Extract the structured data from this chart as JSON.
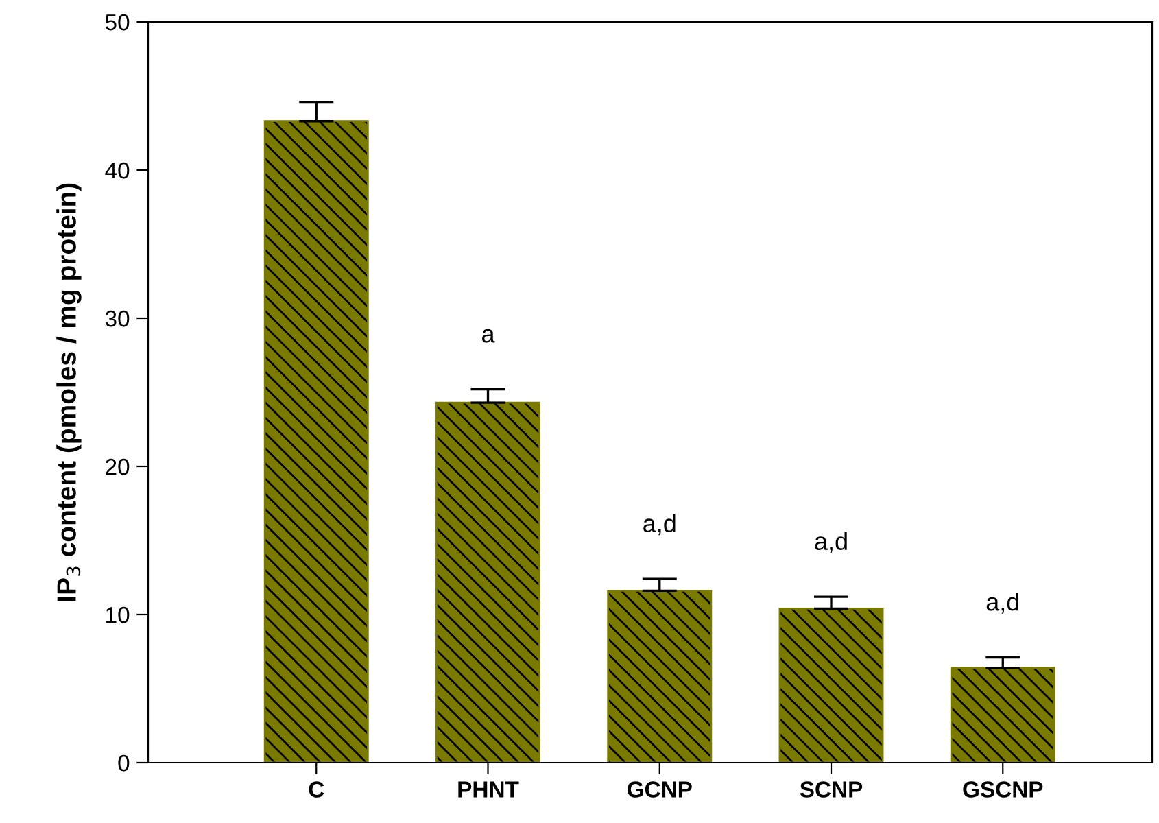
{
  "chart_data": {
    "type": "bar",
    "ylabel": "IP$_{3}$ content (pmoles / mg protein)",
    "categories": [
      "C",
      "PHNT",
      "GCNP",
      "SCNP",
      "GSCNP"
    ],
    "values": [
      43.3,
      24.3,
      11.6,
      10.4,
      6.4
    ],
    "errors": [
      [
        43.3,
        44.6
      ],
      [
        24.3,
        25.2
      ],
      [
        11.6,
        12.4
      ],
      [
        10.4,
        11.2
      ],
      [
        6.4,
        7.1
      ]
    ],
    "color": "#7a7a00",
    "ylim": [
      0,
      50
    ],
    "yticks": [
      0,
      10,
      20,
      30,
      40,
      50
    ],
    "grid": false,
    "annotations": [
      "a",
      "a,d",
      "a,d",
      "a,d"
    ]
  }
}
